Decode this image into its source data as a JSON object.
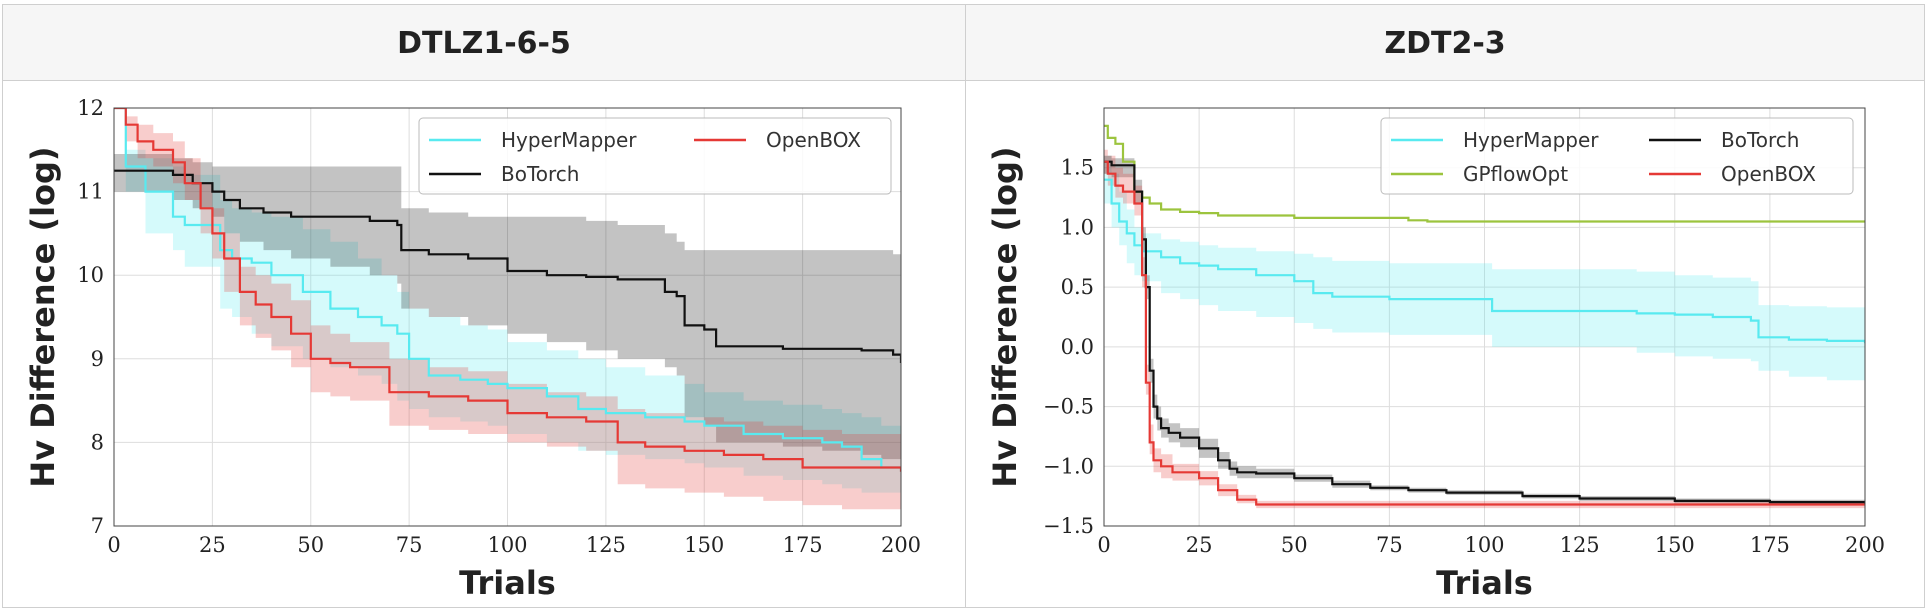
{
  "panels": [
    {
      "title": "DTLZ1-6-5"
    },
    {
      "title": "ZDT2-3"
    }
  ],
  "chart_data": [
    {
      "type": "line",
      "title": "DTLZ1-6-5",
      "xlabel": "Trials",
      "ylabel": "Hv Difference (log)",
      "xlim": [
        0,
        200
      ],
      "ylim": [
        7,
        12
      ],
      "xticks": [
        "0",
        "25",
        "50",
        "75",
        "100",
        "125",
        "150",
        "175",
        "200"
      ],
      "yticks": [
        "7",
        "8",
        "9",
        "10",
        "11",
        "12"
      ],
      "grid": true,
      "legend": "top-right",
      "series": [
        {
          "name": "HyperMapper",
          "color": "#58eaf0",
          "x": [
            0,
            3,
            8,
            15,
            18,
            20,
            27,
            30,
            35,
            40,
            48,
            55,
            62,
            68,
            72,
            75,
            80,
            88,
            95,
            100,
            110,
            118,
            125,
            135,
            145,
            150,
            160,
            170,
            180,
            185,
            190,
            195,
            200
          ],
          "y": [
            12.0,
            11.3,
            11.0,
            10.7,
            10.6,
            10.6,
            10.3,
            10.2,
            10.15,
            10.0,
            9.8,
            9.6,
            9.5,
            9.4,
            9.3,
            9.0,
            8.8,
            8.75,
            8.7,
            8.65,
            8.55,
            8.4,
            8.35,
            8.3,
            8.25,
            8.2,
            8.1,
            8.05,
            8.0,
            7.95,
            7.8,
            7.7,
            7.65
          ],
          "band_lower": [
            12.0,
            11.0,
            10.5,
            10.3,
            10.1,
            10.1,
            9.6,
            9.5,
            9.3,
            9.15,
            9.0,
            8.9,
            8.8,
            8.7,
            8.5,
            8.4,
            8.3,
            8.25,
            8.2,
            8.1,
            8.0,
            7.9,
            7.85,
            7.8,
            7.75,
            7.7,
            7.6,
            7.55,
            7.5,
            7.45,
            7.4,
            7.4,
            7.4
          ],
          "band_upper": [
            12.0,
            11.5,
            11.4,
            11.3,
            11.2,
            11.2,
            10.9,
            10.8,
            10.75,
            10.7,
            10.55,
            10.4,
            10.2,
            10.0,
            9.8,
            9.6,
            9.5,
            9.4,
            9.35,
            9.2,
            9.1,
            9.0,
            8.9,
            8.8,
            8.7,
            8.6,
            8.5,
            8.45,
            8.4,
            8.35,
            8.3,
            8.2,
            8.1
          ]
        },
        {
          "name": "BoTorch",
          "color": "#111111",
          "x": [
            0,
            10,
            15,
            20,
            25,
            28,
            32,
            38,
            45,
            55,
            65,
            72,
            73,
            80,
            90,
            100,
            110,
            120,
            128,
            140,
            143,
            145,
            150,
            153,
            160,
            170,
            180,
            190,
            195,
            198,
            200
          ],
          "y": [
            11.25,
            11.25,
            11.2,
            11.1,
            11.0,
            10.9,
            10.8,
            10.75,
            10.7,
            10.7,
            10.65,
            10.6,
            10.3,
            10.25,
            10.2,
            10.05,
            10.0,
            9.98,
            9.95,
            9.8,
            9.75,
            9.4,
            9.35,
            9.15,
            9.15,
            9.12,
            9.12,
            9.1,
            9.1,
            9.05,
            8.95
          ],
          "band_lower": [
            11.0,
            11.0,
            10.9,
            10.8,
            10.7,
            10.5,
            10.4,
            10.3,
            10.2,
            10.1,
            10.0,
            9.9,
            9.6,
            9.5,
            9.4,
            9.3,
            9.2,
            9.1,
            9.0,
            8.9,
            8.8,
            8.3,
            8.2,
            8.0,
            8.0,
            7.95,
            7.9,
            7.85,
            7.8,
            7.8,
            7.8
          ],
          "band_upper": [
            11.45,
            11.45,
            11.4,
            11.35,
            11.3,
            11.3,
            11.3,
            11.3,
            11.3,
            11.3,
            11.3,
            11.3,
            10.8,
            10.75,
            10.7,
            10.7,
            10.7,
            10.65,
            10.6,
            10.5,
            10.4,
            10.3,
            10.3,
            10.3,
            10.3,
            10.3,
            10.3,
            10.3,
            10.3,
            10.25,
            10.2
          ]
        },
        {
          "name": "OpenBOX",
          "color": "#e53935",
          "x": [
            0,
            3,
            6,
            10,
            15,
            18,
            22,
            25,
            28,
            32,
            36,
            40,
            45,
            50,
            55,
            60,
            70,
            80,
            90,
            100,
            110,
            120,
            125,
            128,
            135,
            145,
            155,
            165,
            175,
            185,
            195,
            200
          ],
          "y": [
            12.0,
            11.8,
            11.6,
            11.5,
            11.35,
            11.1,
            10.8,
            10.5,
            10.2,
            9.8,
            9.65,
            9.5,
            9.3,
            9.0,
            8.95,
            8.9,
            8.6,
            8.55,
            8.5,
            8.35,
            8.3,
            8.25,
            8.25,
            8.0,
            7.95,
            7.9,
            7.85,
            7.8,
            7.7,
            7.7,
            7.7,
            7.65
          ],
          "band_lower": [
            12.0,
            11.6,
            11.4,
            11.3,
            11.1,
            10.9,
            10.5,
            10.2,
            9.8,
            9.4,
            9.25,
            9.1,
            8.9,
            8.6,
            8.55,
            8.5,
            8.2,
            8.15,
            8.1,
            8.0,
            7.95,
            7.9,
            7.9,
            7.5,
            7.45,
            7.4,
            7.35,
            7.3,
            7.25,
            7.2,
            7.2,
            7.15
          ],
          "band_upper": [
            12.0,
            11.9,
            11.8,
            11.7,
            11.6,
            11.4,
            11.1,
            10.8,
            10.5,
            10.1,
            10.0,
            9.9,
            9.7,
            9.4,
            9.3,
            9.2,
            9.0,
            8.9,
            8.85,
            8.7,
            8.6,
            8.55,
            8.55,
            8.4,
            8.35,
            8.3,
            8.25,
            8.2,
            8.15,
            8.1,
            8.1,
            8.05
          ]
        }
      ]
    },
    {
      "type": "line",
      "title": "ZDT2-3",
      "xlabel": "Trials",
      "ylabel": "Hv Difference (log)",
      "xlim": [
        0,
        200
      ],
      "ylim": [
        -1.5,
        2.0
      ],
      "xticks": [
        "0",
        "25",
        "50",
        "75",
        "100",
        "125",
        "150",
        "175",
        "200"
      ],
      "yticks": [
        "−1.5",
        "−1.0",
        "−0.5",
        "0.0",
        "0.5",
        "1.0",
        "1.5"
      ],
      "ytick_values": [
        -1.5,
        -1.0,
        -0.5,
        0.0,
        0.5,
        1.0,
        1.5
      ],
      "grid": true,
      "legend": "top-right",
      "series": [
        {
          "name": "HyperMapper",
          "color": "#58eaf0",
          "x": [
            0,
            2,
            4,
            6,
            8,
            10,
            15,
            20,
            25,
            30,
            40,
            50,
            55,
            60,
            75,
            90,
            100,
            102,
            120,
            140,
            150,
            160,
            170,
            172,
            180,
            190,
            200
          ],
          "y": [
            1.4,
            1.2,
            1.05,
            0.95,
            0.85,
            0.8,
            0.75,
            0.7,
            0.68,
            0.65,
            0.6,
            0.55,
            0.45,
            0.42,
            0.4,
            0.4,
            0.4,
            0.3,
            0.3,
            0.28,
            0.27,
            0.25,
            0.22,
            0.08,
            0.06,
            0.05,
            0.03
          ],
          "band_lower": [
            1.2,
            1.0,
            0.85,
            0.7,
            0.6,
            0.55,
            0.45,
            0.4,
            0.35,
            0.3,
            0.25,
            0.2,
            0.15,
            0.12,
            0.1,
            0.1,
            0.1,
            0.0,
            0.0,
            -0.05,
            -0.08,
            -0.1,
            -0.12,
            -0.2,
            -0.25,
            -0.28,
            -0.3
          ],
          "band_upper": [
            1.6,
            1.45,
            1.3,
            1.15,
            1.0,
            0.95,
            0.9,
            0.88,
            0.85,
            0.83,
            0.8,
            0.78,
            0.75,
            0.72,
            0.7,
            0.7,
            0.7,
            0.65,
            0.65,
            0.63,
            0.6,
            0.58,
            0.55,
            0.35,
            0.34,
            0.33,
            0.32
          ]
        },
        {
          "name": "GPflowOpt",
          "color": "#9cc43e",
          "x": [
            0,
            1,
            3,
            5,
            8,
            10,
            12,
            15,
            20,
            25,
            30,
            50,
            80,
            85,
            100,
            150,
            200
          ],
          "y": [
            1.85,
            1.75,
            1.7,
            1.55,
            1.3,
            1.25,
            1.2,
            1.15,
            1.13,
            1.12,
            1.1,
            1.08,
            1.06,
            1.05,
            1.05,
            1.05,
            1.05
          ],
          "band_lower": [
            1.85,
            1.75,
            1.7,
            1.55,
            1.3,
            1.25,
            1.2,
            1.15,
            1.13,
            1.12,
            1.1,
            1.08,
            1.06,
            1.05,
            1.05,
            1.05,
            1.05
          ],
          "band_upper": [
            1.85,
            1.75,
            1.7,
            1.55,
            1.3,
            1.25,
            1.2,
            1.15,
            1.13,
            1.12,
            1.1,
            1.08,
            1.06,
            1.05,
            1.05,
            1.05,
            1.05
          ]
        },
        {
          "name": "BoTorch",
          "color": "#111111",
          "x": [
            0,
            2,
            7,
            8,
            10,
            11,
            12,
            13,
            14,
            15,
            17,
            20,
            25,
            30,
            33,
            35,
            40,
            50,
            60,
            70,
            80,
            90,
            100,
            110,
            125,
            150,
            175,
            200
          ],
          "y": [
            1.55,
            1.52,
            1.52,
            1.3,
            0.9,
            0.5,
            -0.2,
            -0.5,
            -0.6,
            -0.68,
            -0.72,
            -0.76,
            -0.85,
            -0.95,
            -1.02,
            -1.05,
            -1.06,
            -1.1,
            -1.15,
            -1.18,
            -1.2,
            -1.22,
            -1.22,
            -1.25,
            -1.27,
            -1.29,
            -1.3,
            -1.32
          ],
          "band_lower": [
            1.45,
            1.42,
            1.42,
            1.2,
            0.8,
            0.4,
            -0.3,
            -0.6,
            -0.7,
            -0.76,
            -0.8,
            -0.84,
            -0.93,
            -1.02,
            -1.08,
            -1.1,
            -1.1,
            -1.13,
            -1.18,
            -1.2,
            -1.22,
            -1.24,
            -1.24,
            -1.27,
            -1.29,
            -1.31,
            -1.32,
            -1.34
          ],
          "band_upper": [
            1.6,
            1.58,
            1.58,
            1.4,
            1.0,
            0.6,
            -0.1,
            -0.4,
            -0.5,
            -0.6,
            -0.64,
            -0.68,
            -0.77,
            -0.88,
            -0.96,
            -1.0,
            -1.02,
            -1.07,
            -1.12,
            -1.16,
            -1.18,
            -1.2,
            -1.2,
            -1.23,
            -1.25,
            -1.27,
            -1.28,
            -1.3
          ]
        },
        {
          "name": "OpenBOX",
          "color": "#e53935",
          "x": [
            0,
            1,
            3,
            5,
            8,
            10,
            11,
            12,
            13,
            15,
            18,
            22,
            25,
            30,
            35,
            40,
            50,
            75,
            100,
            150,
            200
          ],
          "y": [
            1.55,
            1.45,
            1.35,
            1.3,
            1.2,
            0.6,
            -0.3,
            -0.8,
            -0.95,
            -1.0,
            -1.05,
            -1.05,
            -1.1,
            -1.2,
            -1.28,
            -1.32,
            -1.32,
            -1.32,
            -1.32,
            -1.32,
            -1.32
          ],
          "band_lower": [
            1.45,
            1.35,
            1.25,
            1.2,
            1.1,
            0.5,
            -0.4,
            -0.9,
            -1.05,
            -1.1,
            -1.12,
            -1.12,
            -1.16,
            -1.25,
            -1.31,
            -1.35,
            -1.35,
            -1.35,
            -1.35,
            -1.35,
            -1.35
          ],
          "band_upper": [
            1.65,
            1.6,
            1.5,
            1.45,
            1.35,
            0.75,
            -0.15,
            -0.65,
            -0.85,
            -0.9,
            -0.98,
            -0.98,
            -1.04,
            -1.15,
            -1.24,
            -1.29,
            -1.29,
            -1.29,
            -1.29,
            -1.29,
            -1.29
          ]
        }
      ]
    }
  ]
}
